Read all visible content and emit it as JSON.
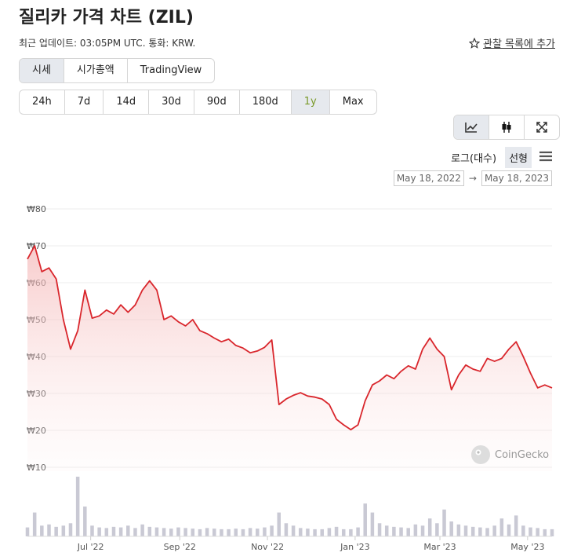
{
  "header": {
    "title": "질리카 가격 차트 (ZIL)",
    "subtitle": "최근 업데이트: 03:05PM UTC. 통화: KRW.",
    "watchlist": "관찰 목록에 추가"
  },
  "tabs": [
    "시세",
    "시가총액",
    "TradingView"
  ],
  "ranges": [
    "24h",
    "7d",
    "14d",
    "30d",
    "90d",
    "180d",
    "1y",
    "Max"
  ],
  "scale_options": [
    "로그(대수)",
    "선형"
  ],
  "watermark": "CoinGecko",
  "chart_data": {
    "type": "line",
    "x": [
      "2022-05-18",
      "2022-05-23",
      "2022-05-28",
      "2022-06-02",
      "2022-06-07",
      "2022-06-12",
      "2022-06-17",
      "2022-06-22",
      "2022-06-27",
      "2022-07-02",
      "2022-07-07",
      "2022-07-12",
      "2022-07-17",
      "2022-07-22",
      "2022-07-27",
      "2022-08-01",
      "2022-08-06",
      "2022-08-11",
      "2022-08-16",
      "2022-08-21",
      "2022-08-26",
      "2022-08-31",
      "2022-09-05",
      "2022-09-10",
      "2022-09-15",
      "2022-09-20",
      "2022-09-25",
      "2022-09-30",
      "2022-10-05",
      "2022-10-10",
      "2022-10-15",
      "2022-10-20",
      "2022-10-25",
      "2022-10-30",
      "2022-11-04",
      "2022-11-09",
      "2022-11-14",
      "2022-11-19",
      "2022-11-24",
      "2022-11-29",
      "2022-12-04",
      "2022-12-09",
      "2022-12-14",
      "2022-12-19",
      "2022-12-24",
      "2022-12-29",
      "2023-01-03",
      "2023-01-08",
      "2023-01-13",
      "2023-01-18",
      "2023-01-23",
      "2023-01-28",
      "2023-02-02",
      "2023-02-07",
      "2023-02-12",
      "2023-02-17",
      "2023-02-22",
      "2023-02-27",
      "2023-03-04",
      "2023-03-09",
      "2023-03-14",
      "2023-03-19",
      "2023-03-24",
      "2023-03-29",
      "2023-04-03",
      "2023-04-08",
      "2023-04-13",
      "2023-04-18",
      "2023-04-23",
      "2023-04-28",
      "2023-05-03",
      "2023-05-08",
      "2023-05-13",
      "2023-05-18"
    ],
    "series": [
      {
        "color": "#d9262c",
        "values": [
          66.4,
          70,
          63,
          64,
          61,
          50,
          42,
          47,
          58,
          50.4,
          51,
          52.6,
          51.5,
          54,
          52,
          54,
          58,
          60.5,
          58,
          50,
          51,
          49.4,
          48.3,
          50,
          47,
          46.2,
          45,
          44,
          44.7,
          43,
          42.3,
          41,
          41.5,
          42.5,
          44.5,
          27,
          28.5,
          29.5,
          30.2,
          29.3,
          29,
          28.5,
          27,
          23,
          21.5,
          20.2,
          21.5,
          28,
          32.3,
          33.4,
          35,
          34,
          36,
          37.5,
          36.6,
          42,
          45,
          42,
          40,
          31,
          35,
          37.7,
          36.6,
          36,
          39.5,
          38.7,
          39.5,
          42,
          44,
          40,
          35.5,
          31.5,
          32.3,
          31.5
        ]
      }
    ],
    "volume": [
      15,
      40,
      18,
      20,
      16,
      18,
      22,
      100,
      50,
      18,
      15,
      14,
      16,
      15,
      18,
      14,
      20,
      16,
      15,
      14,
      13,
      15,
      14,
      13,
      12,
      14,
      13,
      12,
      12,
      13,
      12,
      14,
      13,
      15,
      18,
      40,
      22,
      18,
      14,
      13,
      12,
      12,
      14,
      16,
      12,
      12,
      15,
      55,
      40,
      22,
      18,
      16,
      15,
      14,
      20,
      18,
      30,
      22,
      45,
      25,
      20,
      18,
      16,
      15,
      14,
      18,
      30,
      20,
      35,
      18,
      15,
      14,
      12,
      12
    ],
    "volume_lim": [
      0,
      100
    ],
    "xlim": [
      "May 18, 2022",
      "May 18, 2023"
    ],
    "xticks": [
      {
        "value": "2022-07-01",
        "label": "Jul '22"
      },
      {
        "value": "2022-09-01",
        "label": "Sep '22"
      },
      {
        "value": "2022-11-01",
        "label": "Nov '22"
      },
      {
        "value": "2023-01-01",
        "label": "Jan '23"
      },
      {
        "value": "2023-03-01",
        "label": "Mar '23"
      },
      {
        "value": "2023-05-01",
        "label": "May '23"
      }
    ],
    "ylim": [
      10,
      80
    ],
    "yticks": [
      {
        "value": 80,
        "label": "₩80"
      },
      {
        "value": 70,
        "label": "₩70"
      },
      {
        "value": 60,
        "label": "₩60"
      },
      {
        "value": 50,
        "label": "₩50"
      },
      {
        "value": 40,
        "label": "₩40"
      },
      {
        "value": 30,
        "label": "₩30"
      },
      {
        "value": 20,
        "label": "₩20"
      },
      {
        "value": 10,
        "label": "₩10"
      }
    ],
    "grid": true
  }
}
